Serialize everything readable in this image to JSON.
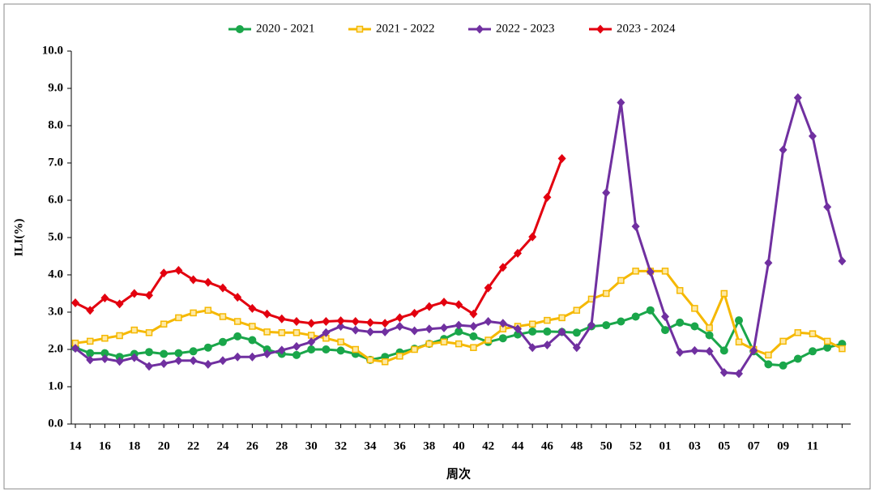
{
  "chart_data": {
    "type": "line",
    "xlabel": "周次",
    "ylabel": "ILI(%)",
    "legend": "top",
    "grid": false,
    "categories": [
      "14",
      null,
      "16",
      null,
      "18",
      null,
      "20",
      null,
      "22",
      null,
      "24",
      null,
      "26",
      null,
      "28",
      null,
      "30",
      null,
      "32",
      null,
      "34",
      null,
      "36",
      null,
      "38",
      null,
      "40",
      null,
      "42",
      null,
      "44",
      null,
      "46",
      null,
      "48",
      null,
      "50",
      null,
      "52",
      null,
      "01",
      null,
      "03",
      null,
      "05",
      null,
      "07",
      null,
      "09",
      null,
      "11",
      null,
      null
    ],
    "ylim": [
      0,
      10
    ],
    "yticks": [
      {
        "value": 0,
        "label": "0.0"
      },
      {
        "value": 1,
        "label": "1.0"
      },
      {
        "value": 2,
        "label": "2.0"
      },
      {
        "value": 3,
        "label": "3.0"
      },
      {
        "value": 4,
        "label": "4.0"
      },
      {
        "value": 5,
        "label": "5.0"
      },
      {
        "value": 6,
        "label": "6.0"
      },
      {
        "value": 7,
        "label": "7.0"
      },
      {
        "value": 8,
        "label": "8.0"
      },
      {
        "value": 9,
        "label": "9.0"
      },
      {
        "value": 10,
        "label": "10.0"
      }
    ],
    "series": [
      {
        "name": "2020 - 2021",
        "color": "#1aa64a",
        "marker": "circle",
        "values": [
          2.05,
          1.9,
          1.9,
          1.8,
          1.88,
          1.93,
          1.88,
          1.9,
          1.95,
          2.05,
          2.2,
          2.35,
          2.25,
          2.0,
          1.88,
          1.85,
          2.0,
          2.0,
          1.97,
          1.88,
          1.72,
          1.8,
          1.92,
          2.02,
          2.15,
          2.28,
          2.48,
          2.35,
          2.2,
          2.3,
          2.4,
          2.48,
          2.48,
          2.47,
          2.45,
          2.62,
          2.65,
          2.75,
          2.88,
          3.05,
          2.52,
          2.72,
          2.62,
          2.38,
          1.97,
          2.78,
          1.95,
          1.6,
          1.57,
          1.75,
          1.95,
          2.05,
          2.15
        ]
      },
      {
        "name": "2021 - 2022",
        "color": "#f5b800",
        "marker": "square",
        "values": [
          2.17,
          2.22,
          2.3,
          2.37,
          2.52,
          2.45,
          2.68,
          2.85,
          2.98,
          3.05,
          2.88,
          2.75,
          2.62,
          2.47,
          2.45,
          2.45,
          2.38,
          2.3,
          2.2,
          2.0,
          1.72,
          1.67,
          1.82,
          2.0,
          2.15,
          2.2,
          2.15,
          2.05,
          2.25,
          2.55,
          2.62,
          2.68,
          2.78,
          2.85,
          3.05,
          3.35,
          3.5,
          3.85,
          4.1,
          4.1,
          4.1,
          3.58,
          3.1,
          2.58,
          3.5,
          2.2,
          2.0,
          1.85,
          2.22,
          2.45,
          2.42,
          2.22,
          2.02
        ]
      },
      {
        "name": "2022 - 2023",
        "color": "#7030a0",
        "marker": "diamond",
        "values": [
          2.03,
          1.72,
          1.75,
          1.68,
          1.78,
          1.55,
          1.62,
          1.7,
          1.7,
          1.6,
          1.7,
          1.8,
          1.8,
          1.88,
          1.98,
          2.08,
          2.2,
          2.45,
          2.62,
          2.52,
          2.47,
          2.47,
          2.62,
          2.5,
          2.55,
          2.58,
          2.65,
          2.62,
          2.75,
          2.7,
          2.55,
          2.05,
          2.12,
          2.47,
          2.05,
          2.65,
          6.2,
          8.62,
          5.3,
          4.08,
          2.88,
          1.92,
          1.97,
          1.95,
          1.38,
          1.35,
          1.97,
          4.32,
          7.35,
          8.75,
          7.72,
          5.82,
          4.37
        ]
      },
      {
        "name": "2023 - 2024",
        "color": "#e3000f",
        "marker": "diamond",
        "values": [
          3.25,
          3.05,
          3.38,
          3.22,
          3.5,
          3.45,
          4.05,
          4.12,
          3.87,
          3.8,
          3.65,
          3.4,
          3.1,
          2.95,
          2.82,
          2.75,
          2.7,
          2.75,
          2.77,
          2.75,
          2.72,
          2.7,
          2.85,
          2.97,
          3.15,
          3.27,
          3.2,
          2.95,
          3.65,
          4.2,
          4.58,
          5.02,
          6.08,
          7.12,
          null,
          null,
          null,
          null,
          null,
          null,
          null,
          null,
          null,
          null,
          null,
          null,
          null,
          null,
          null,
          null,
          null,
          null,
          null
        ]
      }
    ]
  }
}
